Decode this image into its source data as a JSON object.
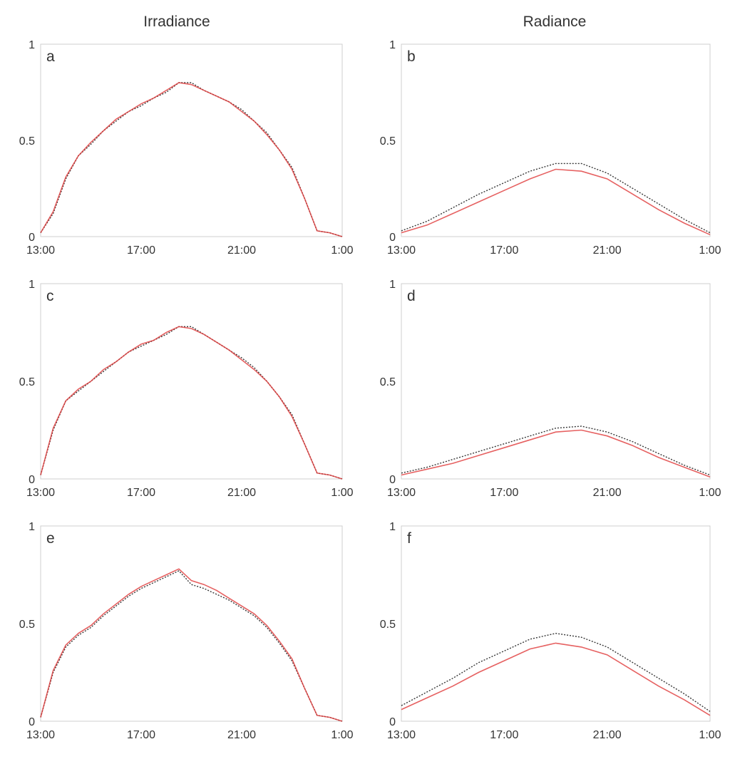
{
  "column_titles": [
    "Irradiance",
    "Radiance"
  ],
  "colors": {
    "measured": "#222222",
    "modeled": "#e0393a",
    "axis": "#cfcfcf",
    "text": "#333333"
  },
  "chart_data": [
    {
      "type": "line",
      "panel": "a",
      "column": "Irradiance",
      "title": "",
      "xlabel": "",
      "ylabel": "",
      "x_tick_labels": [
        "13:00",
        "17:00",
        "21:00",
        "1:00"
      ],
      "y_tick_labels": [
        "0",
        "0.5",
        "1"
      ],
      "ylim": [
        0,
        1
      ],
      "x_unit": "hours since 13:00",
      "xlim": [
        0,
        12
      ],
      "grid": false,
      "series": [
        {
          "name": "measured (dotted black)",
          "x": [
            0,
            0.5,
            1,
            1.5,
            2,
            2.5,
            3,
            3.5,
            4,
            4.5,
            5,
            5.5,
            6,
            6.5,
            7,
            7.5,
            8,
            8.5,
            9,
            9.5,
            10,
            10.5,
            11,
            11.5,
            12
          ],
          "values": [
            0.02,
            0.12,
            0.3,
            0.42,
            0.48,
            0.55,
            0.6,
            0.65,
            0.68,
            0.72,
            0.75,
            0.8,
            0.8,
            0.76,
            0.73,
            0.7,
            0.66,
            0.6,
            0.54,
            0.45,
            0.36,
            0.2,
            0.03,
            0.02,
            0.0
          ]
        },
        {
          "name": "modeled (red)",
          "x": [
            0,
            0.5,
            1,
            1.5,
            2,
            2.5,
            3,
            3.5,
            4,
            4.5,
            5,
            5.5,
            6,
            6.5,
            7,
            7.5,
            8,
            8.5,
            9,
            9.5,
            10,
            10.5,
            11,
            11.5,
            12
          ],
          "values": [
            0.02,
            0.13,
            0.31,
            0.42,
            0.49,
            0.55,
            0.61,
            0.65,
            0.69,
            0.72,
            0.76,
            0.8,
            0.79,
            0.76,
            0.73,
            0.7,
            0.65,
            0.6,
            0.53,
            0.45,
            0.35,
            0.2,
            0.03,
            0.02,
            0.0
          ]
        }
      ]
    },
    {
      "type": "line",
      "panel": "b",
      "column": "Radiance",
      "title": "",
      "xlabel": "",
      "ylabel": "",
      "x_tick_labels": [
        "13:00",
        "17:00",
        "21:00",
        "1:00"
      ],
      "y_tick_labels": [
        "0",
        "0.5",
        "1"
      ],
      "ylim": [
        0,
        1
      ],
      "x_unit": "hours since 13:00",
      "xlim": [
        0,
        12
      ],
      "grid": false,
      "series": [
        {
          "name": "measured (dotted black)",
          "x": [
            0,
            1,
            2,
            3,
            4,
            5,
            6,
            7,
            8,
            9,
            10,
            11,
            12
          ],
          "values": [
            0.03,
            0.08,
            0.15,
            0.22,
            0.28,
            0.34,
            0.38,
            0.38,
            0.33,
            0.25,
            0.17,
            0.09,
            0.02
          ]
        },
        {
          "name": "modeled (red)",
          "x": [
            0,
            1,
            2,
            3,
            4,
            5,
            6,
            7,
            8,
            9,
            10,
            11,
            12
          ],
          "values": [
            0.02,
            0.06,
            0.12,
            0.18,
            0.24,
            0.3,
            0.35,
            0.34,
            0.3,
            0.22,
            0.14,
            0.07,
            0.01
          ]
        }
      ]
    },
    {
      "type": "line",
      "panel": "c",
      "column": "Irradiance",
      "title": "",
      "xlabel": "",
      "ylabel": "",
      "x_tick_labels": [
        "13:00",
        "17:00",
        "21:00",
        "1:00"
      ],
      "y_tick_labels": [
        "0",
        "0.5",
        "1"
      ],
      "ylim": [
        0,
        1
      ],
      "x_unit": "hours since 13:00",
      "xlim": [
        0,
        12
      ],
      "grid": false,
      "series": [
        {
          "name": "measured (dotted black)",
          "x": [
            0,
            0.5,
            1,
            1.5,
            2,
            2.5,
            3,
            3.5,
            4,
            4.5,
            5,
            5.5,
            6,
            6.5,
            7,
            7.5,
            8,
            8.5,
            9,
            9.5,
            10,
            10.5,
            11,
            11.5,
            12
          ],
          "values": [
            0.02,
            0.25,
            0.4,
            0.45,
            0.5,
            0.55,
            0.6,
            0.65,
            0.68,
            0.71,
            0.74,
            0.78,
            0.78,
            0.74,
            0.7,
            0.66,
            0.62,
            0.57,
            0.5,
            0.42,
            0.33,
            0.18,
            0.03,
            0.02,
            0.0
          ]
        },
        {
          "name": "modeled (red)",
          "x": [
            0,
            0.5,
            1,
            1.5,
            2,
            2.5,
            3,
            3.5,
            4,
            4.5,
            5,
            5.5,
            6,
            6.5,
            7,
            7.5,
            8,
            8.5,
            9,
            9.5,
            10,
            10.5,
            11,
            11.5,
            12
          ],
          "values": [
            0.02,
            0.26,
            0.4,
            0.46,
            0.5,
            0.56,
            0.6,
            0.65,
            0.69,
            0.71,
            0.75,
            0.78,
            0.77,
            0.74,
            0.7,
            0.66,
            0.61,
            0.56,
            0.5,
            0.42,
            0.32,
            0.18,
            0.03,
            0.02,
            0.0
          ]
        }
      ]
    },
    {
      "type": "line",
      "panel": "d",
      "column": "Radiance",
      "title": "",
      "xlabel": "",
      "ylabel": "",
      "x_tick_labels": [
        "13:00",
        "17:00",
        "21:00",
        "1:00"
      ],
      "y_tick_labels": [
        "0",
        "0.5",
        "1"
      ],
      "ylim": [
        0,
        1
      ],
      "x_unit": "hours since 13:00",
      "xlim": [
        0,
        12
      ],
      "grid": false,
      "series": [
        {
          "name": "measured (dotted black)",
          "x": [
            0,
            1,
            2,
            3,
            4,
            5,
            6,
            7,
            8,
            9,
            10,
            11,
            12
          ],
          "values": [
            0.03,
            0.06,
            0.1,
            0.14,
            0.18,
            0.22,
            0.26,
            0.27,
            0.24,
            0.19,
            0.13,
            0.07,
            0.02
          ]
        },
        {
          "name": "modeled (red)",
          "x": [
            0,
            1,
            2,
            3,
            4,
            5,
            6,
            7,
            8,
            9,
            10,
            11,
            12
          ],
          "values": [
            0.02,
            0.05,
            0.08,
            0.12,
            0.16,
            0.2,
            0.24,
            0.25,
            0.22,
            0.17,
            0.11,
            0.06,
            0.01
          ]
        }
      ]
    },
    {
      "type": "line",
      "panel": "e",
      "column": "Irradiance",
      "title": "",
      "xlabel": "",
      "ylabel": "",
      "x_tick_labels": [
        "13:00",
        "17:00",
        "21:00",
        "1:00"
      ],
      "y_tick_labels": [
        "0",
        "0.5",
        "1"
      ],
      "ylim": [
        0,
        1
      ],
      "x_unit": "hours since 13:00",
      "xlim": [
        0,
        12
      ],
      "grid": false,
      "series": [
        {
          "name": "measured (dotted black)",
          "x": [
            0,
            0.5,
            1,
            1.5,
            2,
            2.5,
            3,
            3.5,
            4,
            4.5,
            5,
            5.5,
            6,
            6.5,
            7,
            7.5,
            8,
            8.5,
            9,
            9.5,
            10,
            10.5,
            11,
            11.5,
            12
          ],
          "values": [
            0.02,
            0.25,
            0.38,
            0.44,
            0.48,
            0.54,
            0.59,
            0.64,
            0.68,
            0.71,
            0.74,
            0.77,
            0.7,
            0.68,
            0.65,
            0.62,
            0.58,
            0.54,
            0.48,
            0.4,
            0.31,
            0.17,
            0.03,
            0.02,
            0.0
          ]
        },
        {
          "name": "modeled (red)",
          "x": [
            0,
            0.5,
            1,
            1.5,
            2,
            2.5,
            3,
            3.5,
            4,
            4.5,
            5,
            5.5,
            6,
            6.5,
            7,
            7.5,
            8,
            8.5,
            9,
            9.5,
            10,
            10.5,
            11,
            11.5,
            12
          ],
          "values": [
            0.02,
            0.26,
            0.39,
            0.45,
            0.49,
            0.55,
            0.6,
            0.65,
            0.69,
            0.72,
            0.75,
            0.78,
            0.72,
            0.7,
            0.67,
            0.63,
            0.59,
            0.55,
            0.49,
            0.41,
            0.32,
            0.17,
            0.03,
            0.02,
            0.0
          ]
        }
      ]
    },
    {
      "type": "line",
      "panel": "f",
      "column": "Radiance",
      "title": "",
      "xlabel": "",
      "ylabel": "",
      "x_tick_labels": [
        "13:00",
        "17:00",
        "21:00",
        "1:00"
      ],
      "y_tick_labels": [
        "0",
        "0.5",
        "1"
      ],
      "ylim": [
        0,
        1
      ],
      "x_unit": "hours since 13:00",
      "xlim": [
        0,
        12
      ],
      "grid": false,
      "series": [
        {
          "name": "measured (dotted black)",
          "x": [
            0,
            1,
            2,
            3,
            4,
            5,
            6,
            7,
            8,
            9,
            10,
            11,
            12
          ],
          "values": [
            0.08,
            0.15,
            0.22,
            0.3,
            0.36,
            0.42,
            0.45,
            0.43,
            0.38,
            0.3,
            0.22,
            0.14,
            0.05
          ]
        },
        {
          "name": "modeled (red)",
          "x": [
            0,
            1,
            2,
            3,
            4,
            5,
            6,
            7,
            8,
            9,
            10,
            11,
            12
          ],
          "values": [
            0.06,
            0.12,
            0.18,
            0.25,
            0.31,
            0.37,
            0.4,
            0.38,
            0.34,
            0.26,
            0.18,
            0.11,
            0.03
          ]
        }
      ]
    }
  ]
}
